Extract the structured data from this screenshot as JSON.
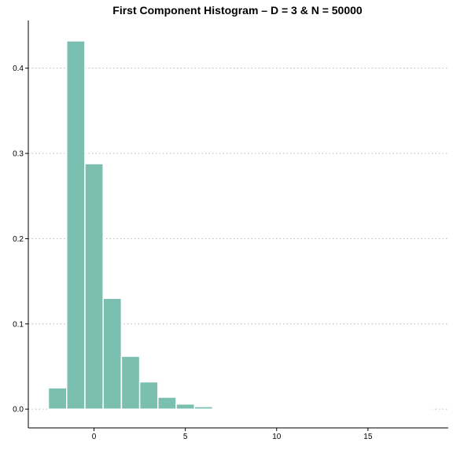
{
  "chart_data": {
    "type": "bar",
    "title": "First Component Histogram – D = 3 & N = 50000",
    "xlabel": "",
    "ylabel": "",
    "bar_color": "#7bbfb0",
    "bar_edge_color": "#ffffff",
    "bins": [
      {
        "x0": -2.5,
        "x1": -1.5,
        "density": 0.025
      },
      {
        "x0": -1.5,
        "x1": -0.5,
        "density": 0.432
      },
      {
        "x0": -0.5,
        "x1": 0.5,
        "density": 0.288
      },
      {
        "x0": 0.5,
        "x1": 1.5,
        "density": 0.13
      },
      {
        "x0": 1.5,
        "x1": 2.5,
        "density": 0.062
      },
      {
        "x0": 2.5,
        "x1": 3.5,
        "density": 0.032
      },
      {
        "x0": 3.5,
        "x1": 4.5,
        "density": 0.014
      },
      {
        "x0": 4.5,
        "x1": 5.5,
        "density": 0.006
      },
      {
        "x0": 5.5,
        "x1": 6.5,
        "density": 0.003
      },
      {
        "x0": 6.5,
        "x1": 7.5,
        "density": 0.0012
      },
      {
        "x0": 7.5,
        "x1": 8.5,
        "density": 0.0008
      },
      {
        "x0": 8.5,
        "x1": 9.5,
        "density": 0.0004
      },
      {
        "x0": 9.5,
        "x1": 10.5,
        "density": 0.0003
      },
      {
        "x0": 10.5,
        "x1": 11.5,
        "density": 0.0002
      },
      {
        "x0": 11.5,
        "x1": 12.5,
        "density": 0.0001
      },
      {
        "x0": 12.5,
        "x1": 13.5,
        "density": 0.0001
      },
      {
        "x0": 13.5,
        "x1": 14.5,
        "density": 5e-05
      },
      {
        "x0": 14.5,
        "x1": 15.5,
        "density": 5e-05
      },
      {
        "x0": 15.5,
        "x1": 16.5,
        "density": 3e-05
      },
      {
        "x0": 16.5,
        "x1": 17.5,
        "density": 2e-05
      },
      {
        "x0": 17.5,
        "x1": 18.5,
        "density": 2e-05
      }
    ],
    "xlim": [
      -3.6,
      19.4
    ],
    "ylim": [
      -0.022,
      0.456
    ],
    "x_ticks": [
      {
        "value": 0,
        "label": "0"
      },
      {
        "value": 5,
        "label": "5"
      },
      {
        "value": 10,
        "label": "10"
      },
      {
        "value": 15,
        "label": "15"
      }
    ],
    "y_ticks": [
      {
        "value": 0.0,
        "label": "0.0"
      },
      {
        "value": 0.1,
        "label": "0.1"
      },
      {
        "value": 0.2,
        "label": "0.2"
      },
      {
        "value": 0.3,
        "label": "0.3"
      },
      {
        "value": 0.4,
        "label": "0.4"
      }
    ],
    "grid": "horizontal-dotted",
    "legend": "none"
  }
}
